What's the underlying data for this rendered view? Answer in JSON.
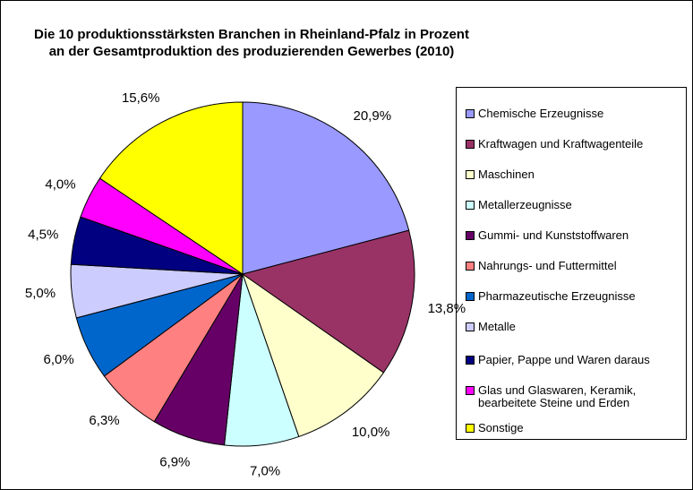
{
  "chart_data": {
    "type": "pie",
    "title": "Die 10 produktionsstärksten Branchen in Rheinland-Pfalz in Prozent\nan der Gesamtproduktion des produzierenden Gewerbes (2010)",
    "categories": [
      "Chemische Erzeugnisse",
      "Kraftwagen und Kraftwagenteile",
      "Maschinen",
      "Metallerzeugnisse",
      "Gummi- und Kunststoffwaren",
      "Nahrungs- und Futtermittel",
      "Pharmazeutische Erzeugnisse",
      "Metalle",
      "Papier, Pappe und Waren daraus",
      "Glas und Glaswaren, Keramik, bearbeitete Steine und Erden",
      "Sonstige"
    ],
    "values": [
      20.9,
      13.8,
      10.0,
      7.0,
      6.9,
      6.3,
      6.0,
      5.0,
      4.5,
      4.0,
      15.6
    ],
    "value_labels": [
      "20,9%",
      "13,8%",
      "10,0%",
      "7,0%",
      "6,9%",
      "6,3%",
      "6,0%",
      "5,0%",
      "4,5%",
      "4,0%",
      "15,6%"
    ],
    "colors": [
      "#9999FF",
      "#993366",
      "#FFFFCC",
      "#CCFFFF",
      "#660066",
      "#FF8080",
      "#0066CC",
      "#CCCCFF",
      "#000080",
      "#FF00FF",
      "#FFFF00"
    ],
    "legend": "right"
  }
}
